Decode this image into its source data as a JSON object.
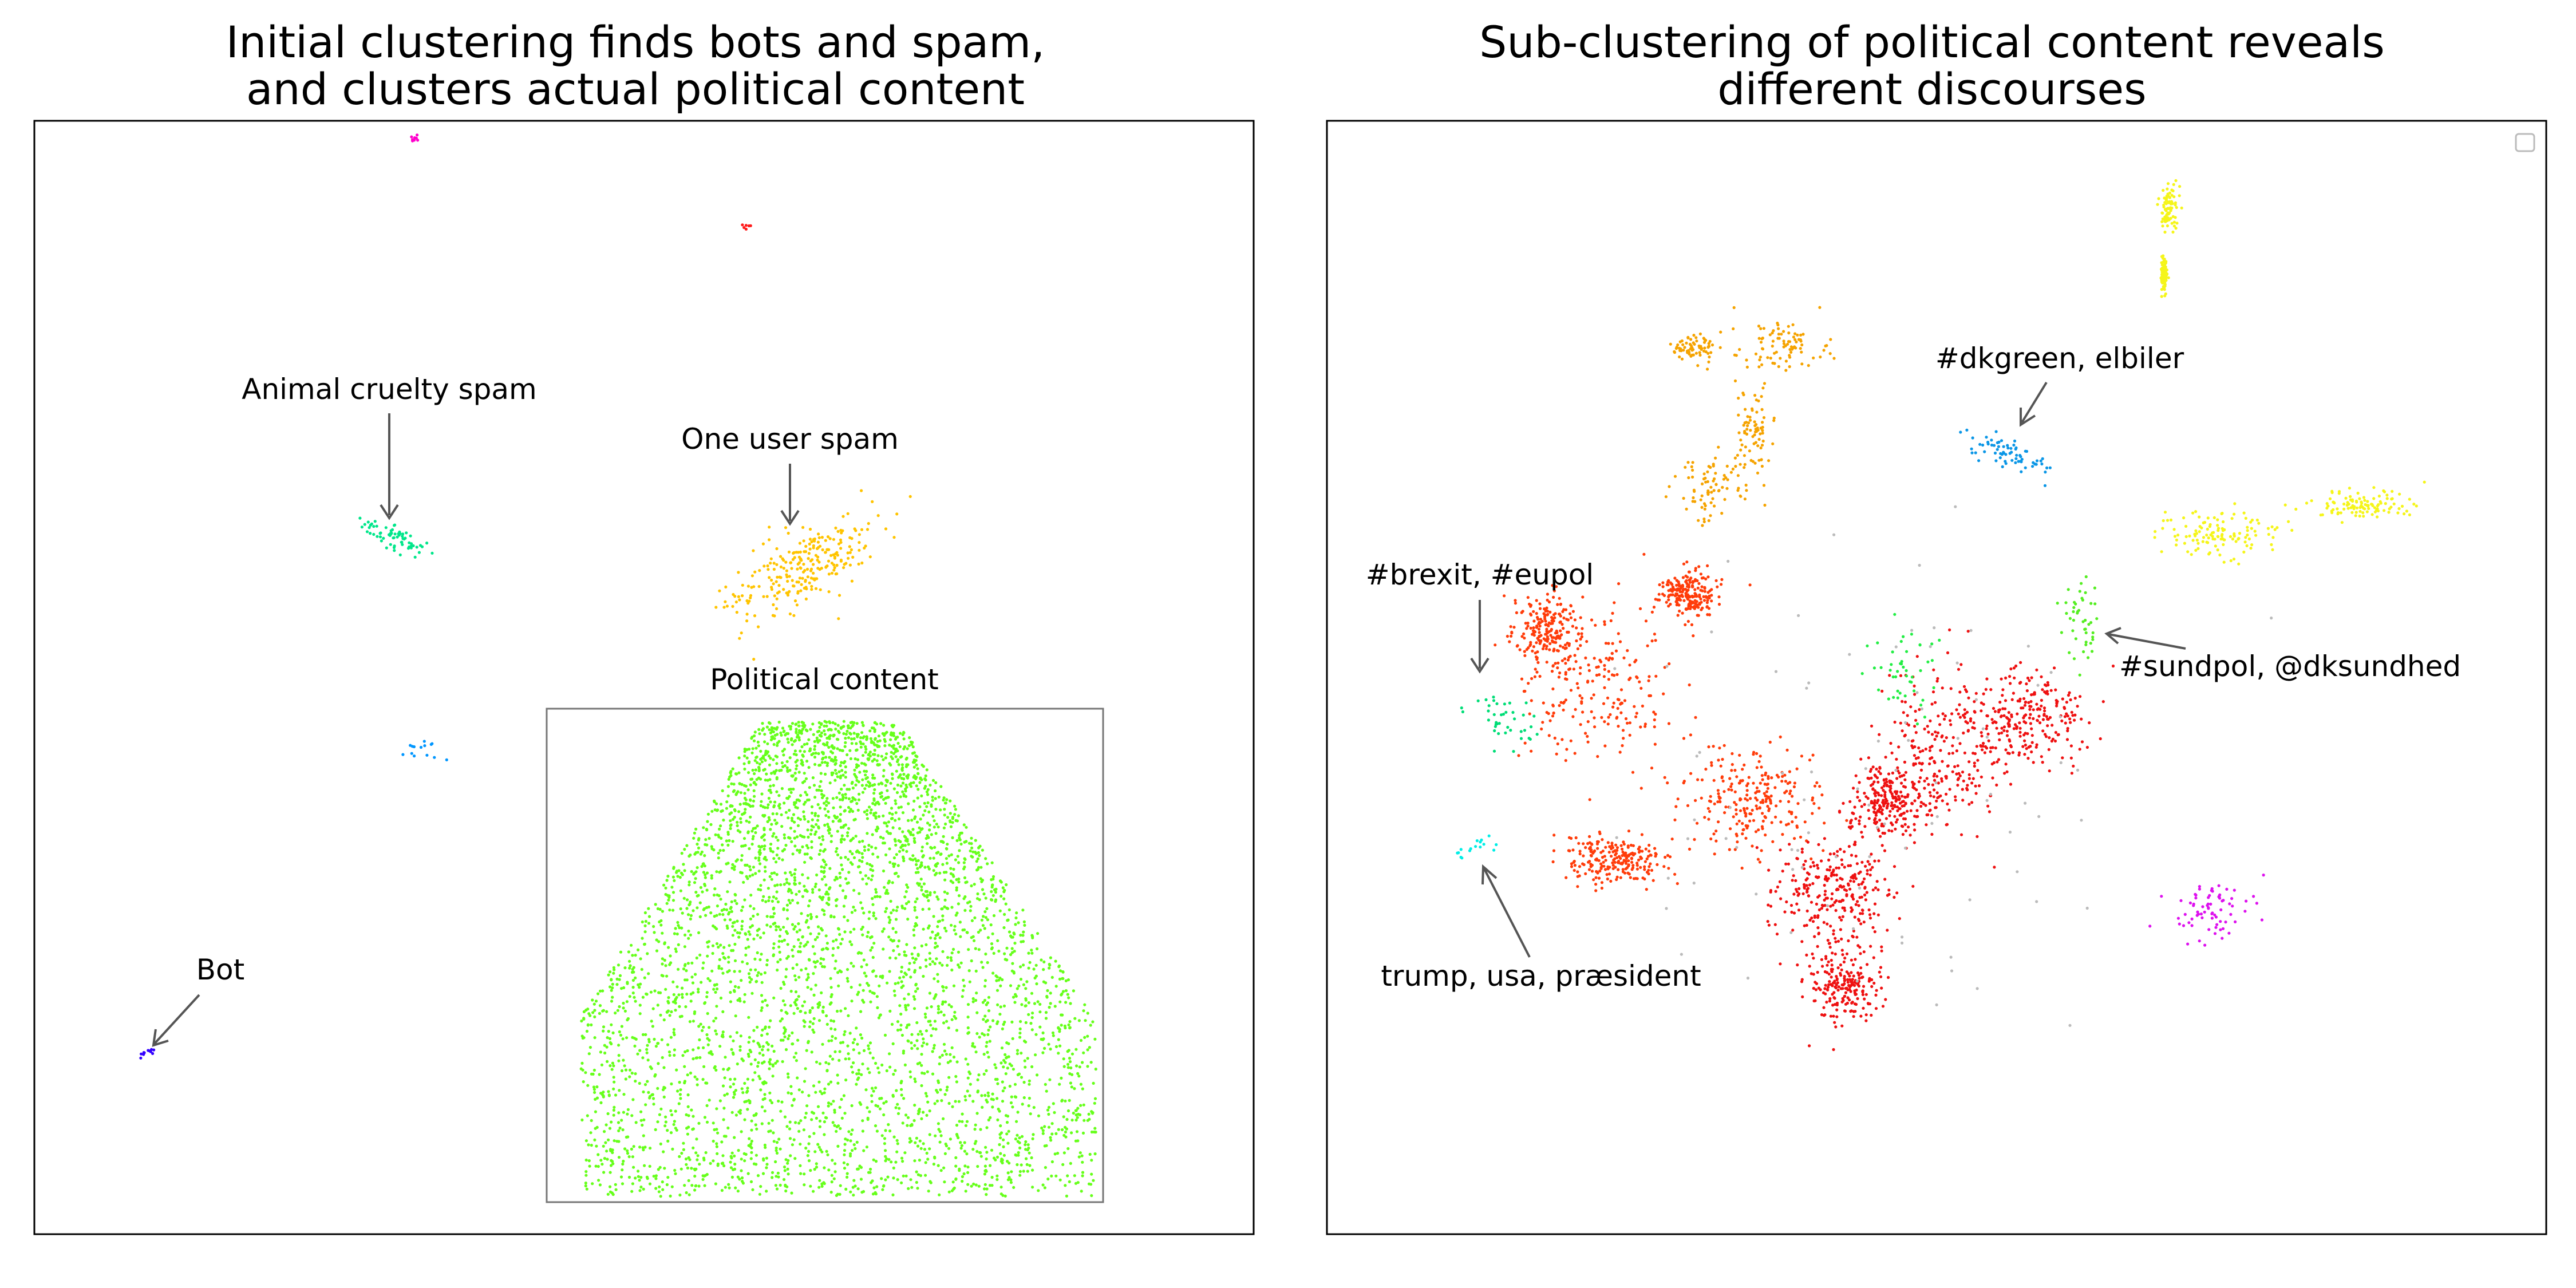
{
  "chart_data": [
    {
      "type": "scatter",
      "title_lines": [
        "Initial clustering finds bots and spam,",
        "and clusters actual political content"
      ],
      "annotations": [
        {
          "label": "Animal cruelty spam"
        },
        {
          "label": "One user spam"
        },
        {
          "label": "Political content"
        },
        {
          "label": "Bot"
        }
      ],
      "clusters": [
        {
          "name": "Political content",
          "color": "#66ff1a",
          "points": 4200
        },
        {
          "name": "One user spam",
          "color": "#ffc400",
          "points": 260
        },
        {
          "name": "Animal cruelty spam",
          "color": "#00e68a",
          "points": 70
        },
        {
          "name": "Bot",
          "color": "#3300ff",
          "points": 12
        },
        {
          "name": "",
          "color": "#ff00cc",
          "points": 8
        },
        {
          "name": "",
          "color": "#ff1a1a",
          "points": 6
        },
        {
          "name": "",
          "color": "#0096ff",
          "points": 14
        }
      ],
      "grid": false
    },
    {
      "type": "scatter",
      "title_lines": [
        "Sub-clustering of political content reveals",
        "different discourses"
      ],
      "annotations": [
        {
          "label": "#dkgreen, elbiler"
        },
        {
          "label": "#brexit, #eupol"
        },
        {
          "label": "#sundpol, @dksundhed"
        },
        {
          "label": "trump, usa, præsident"
        }
      ],
      "clusters": [
        {
          "name": "",
          "color": "#ff3c0a",
          "points": 1100
        },
        {
          "name": "",
          "color": "#ee1111",
          "points": 1200
        },
        {
          "name": "",
          "color": "#f5a300",
          "points": 320
        },
        {
          "name": "",
          "color": "#f5f51a",
          "points": 420
        },
        {
          "name": "#dkgreen, elbiler",
          "color": "#0a96e6",
          "points": 70
        },
        {
          "name": "#sundpol, @dksundhed",
          "color": "#55ee22",
          "points": 45
        },
        {
          "name": "#brexit, #eupol",
          "color": "#00dd77",
          "points": 40
        },
        {
          "name": "trump, usa, præsident",
          "color": "#00eee6",
          "points": 16
        },
        {
          "name": "",
          "color": "#dd11ee",
          "points": 75
        },
        {
          "name": "",
          "color": "#22ee44",
          "points": 45
        },
        {
          "name": "",
          "color": "#bbbbbb",
          "points": 90
        }
      ],
      "legend": "top-right",
      "grid": false
    }
  ]
}
